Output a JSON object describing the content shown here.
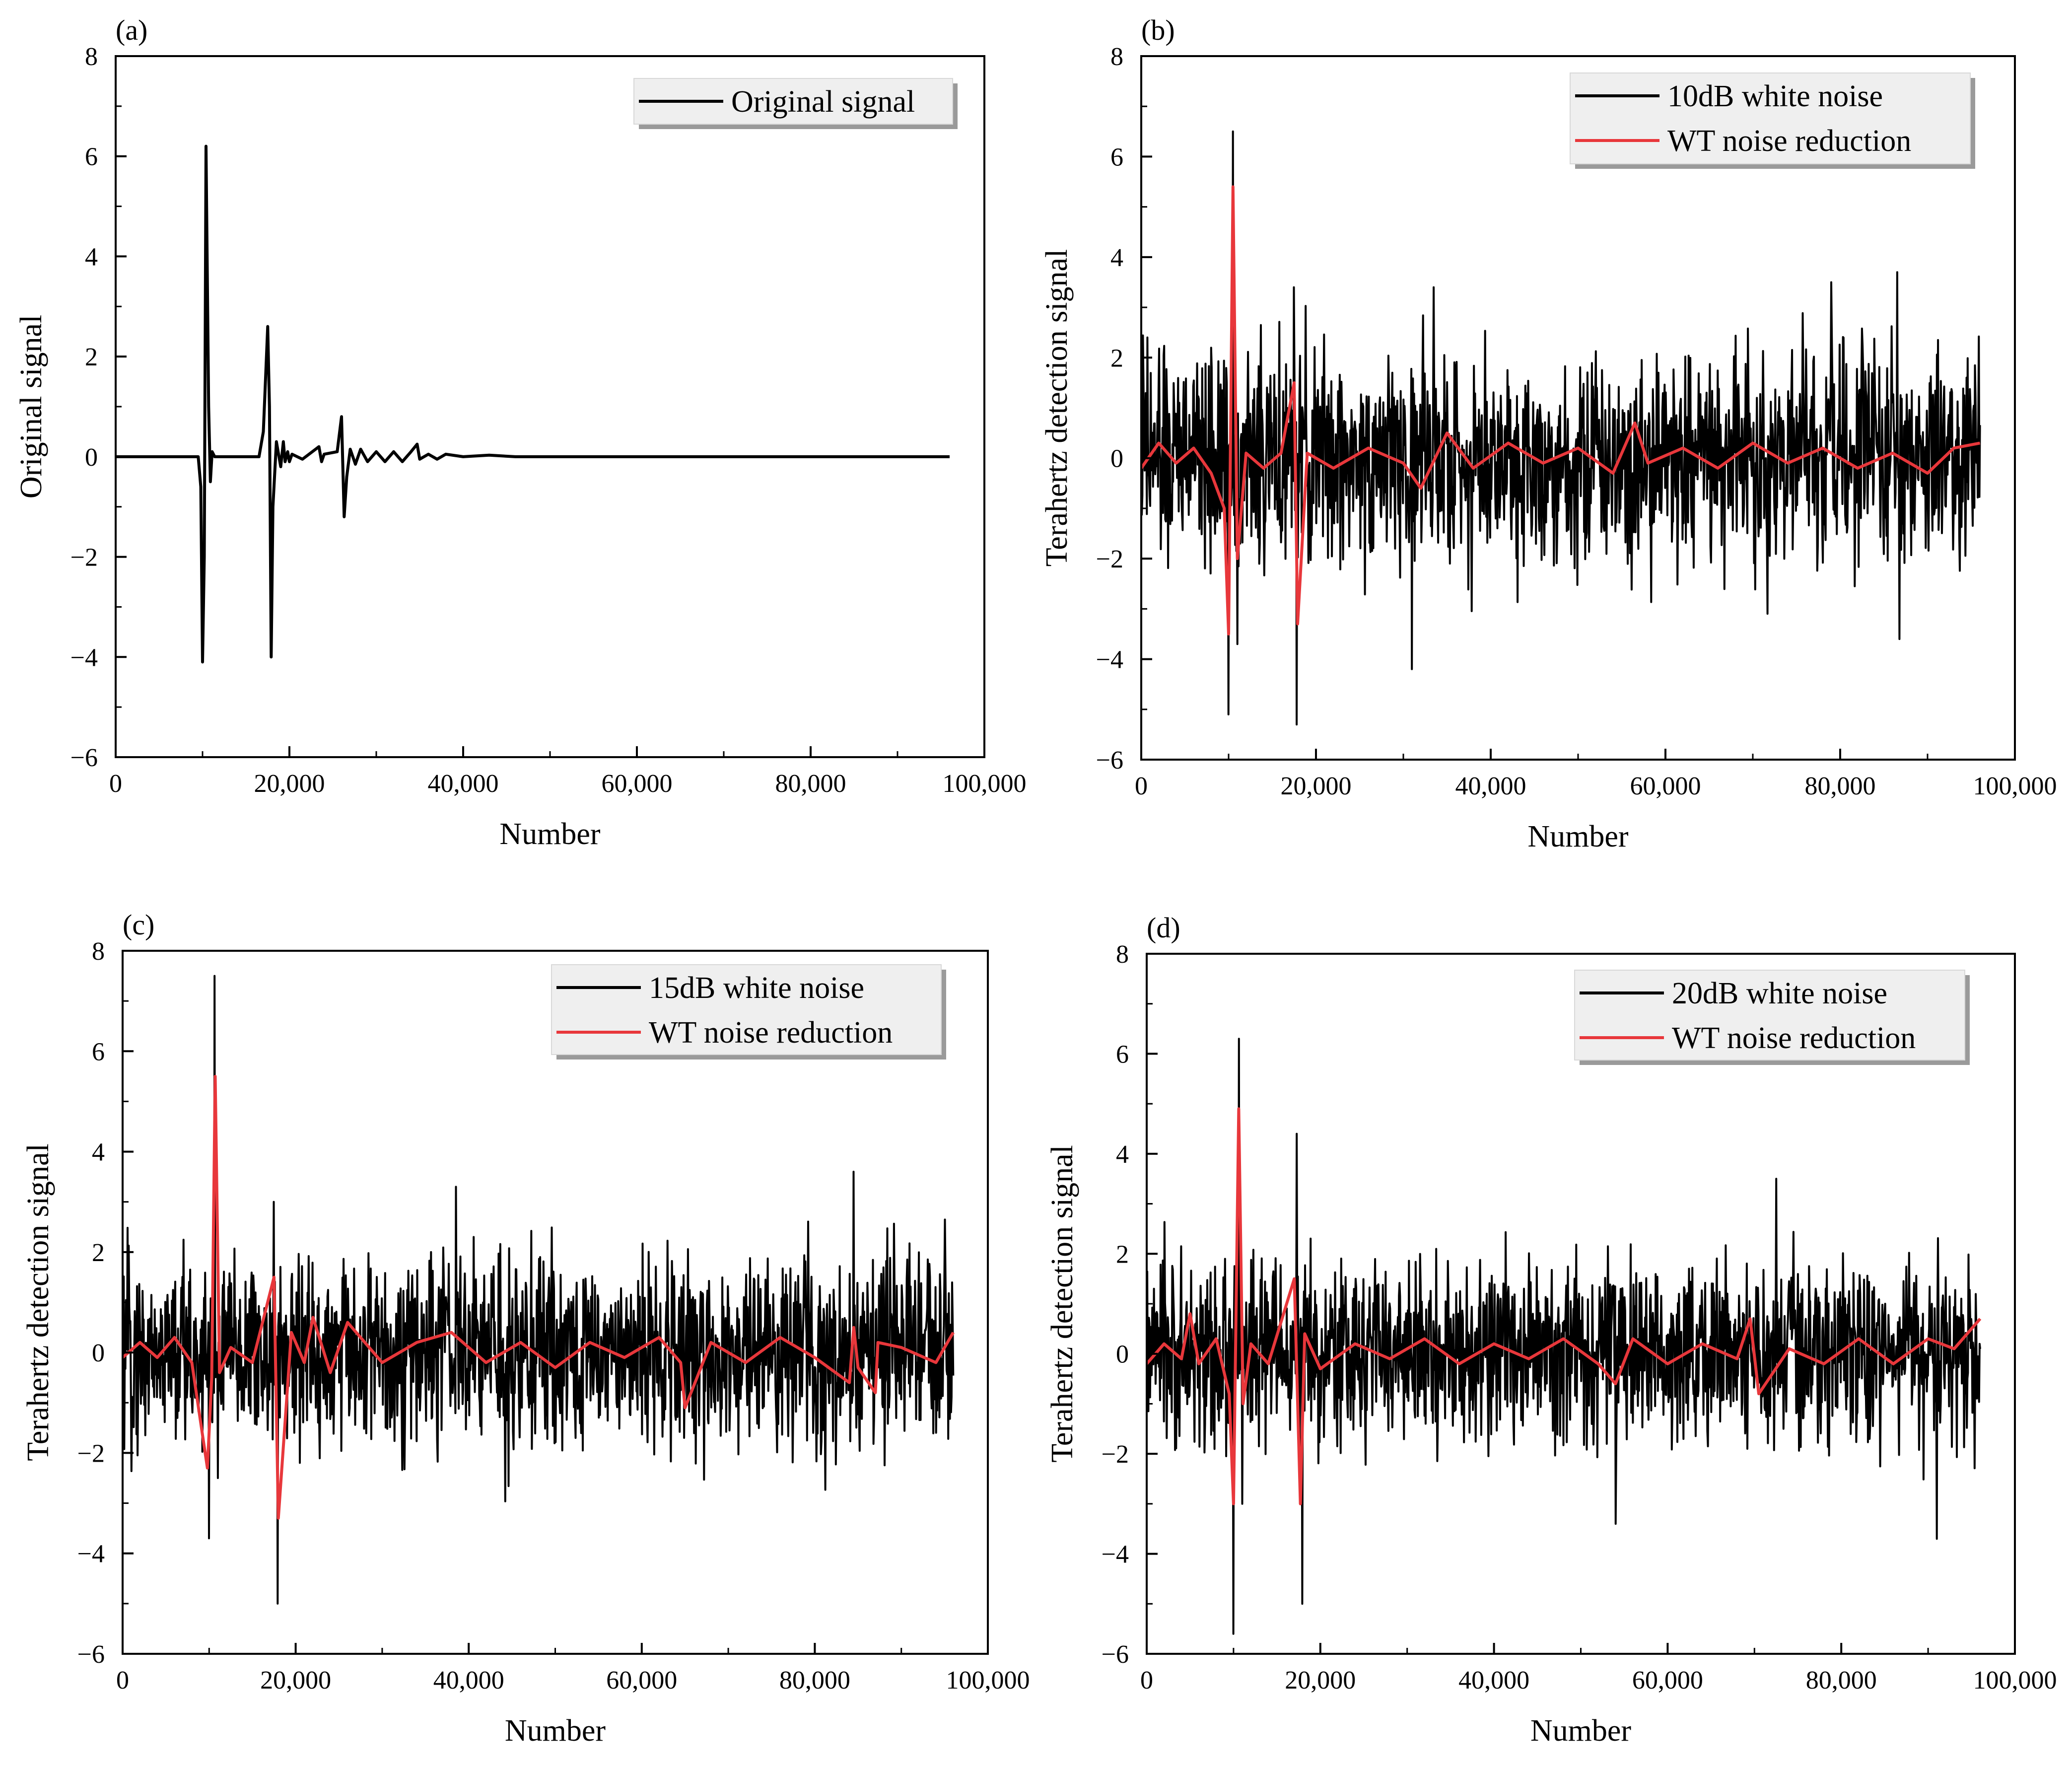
{
  "colors": {
    "noisy": "#000000",
    "denoised": "#e8373b",
    "legend_fill": "#efefef",
    "legend_shadow": "#9a9a9a"
  },
  "chart_data": [
    {
      "type": "line",
      "panel": "(a)",
      "xlabel": "Number",
      "ylabel": "Original signal",
      "xlim": [
        0,
        100000
      ],
      "ylim": [
        -6,
        8
      ],
      "xticks": [
        0,
        20000,
        40000,
        60000,
        80000,
        100000
      ],
      "xtick_labels": [
        "0",
        "20,000",
        "40,000",
        "60,000",
        "80,000",
        "100,000"
      ],
      "yticks": [
        -6,
        -4,
        -2,
        0,
        2,
        4,
        6,
        8
      ],
      "ytick_labels": [
        "−6",
        "−4",
        "−2",
        "0",
        "2",
        "4",
        "6",
        "8"
      ],
      "legend": [
        "Original signal"
      ],
      "legend_position": "top-right",
      "series": [
        {
          "name": "Original signal",
          "color": "#000000",
          "x": [
            0,
            9500,
            9800,
            10000,
            10200,
            10400,
            10700,
            10900,
            11100,
            11400,
            12000,
            16500,
            17000,
            17500,
            17700,
            17900,
            18100,
            18500,
            19000,
            19300,
            19500,
            19800,
            20000,
            20300,
            21500,
            23400,
            23700,
            24000,
            25500,
            26000,
            26300,
            26600,
            27000,
            27600,
            28200,
            29000,
            30000,
            31000,
            32000,
            33000,
            34000,
            34700,
            35000,
            36000,
            37000,
            38000,
            40000,
            43000,
            46000,
            50000,
            96000
          ],
          "y": [
            0,
            0,
            -0.6,
            -4.1,
            -2.0,
            6.2,
            1.0,
            -0.5,
            0.1,
            0,
            0,
            0,
            0.5,
            2.6,
            1.0,
            -4.0,
            -1.0,
            0.3,
            -0.2,
            0.3,
            -0.1,
            0.1,
            -0.1,
            0.05,
            -0.05,
            0.2,
            -0.1,
            0.05,
            0.1,
            0.8,
            -1.2,
            -0.4,
            0.15,
            -0.15,
            0.15,
            -0.1,
            0.1,
            -0.1,
            0.1,
            -0.1,
            0.1,
            0.25,
            -0.05,
            0.05,
            -0.05,
            0.05,
            0,
            0.03,
            0,
            0,
            0
          ]
        }
      ]
    },
    {
      "type": "line",
      "panel": "(b)",
      "xlabel": "Number",
      "ylabel": "Terahertz detection signal",
      "xlim": [
        0,
        100000
      ],
      "ylim": [
        -6,
        8
      ],
      "xticks": [
        0,
        20000,
        40000,
        60000,
        80000,
        100000
      ],
      "xtick_labels": [
        "0",
        "20,000",
        "40,000",
        "60,000",
        "80,000",
        "100,000"
      ],
      "yticks": [
        -6,
        -4,
        -2,
        0,
        2,
        4,
        6,
        8
      ],
      "ytick_labels": [
        "−6",
        "−4",
        "−2",
        "0",
        "2",
        "4",
        "6",
        "8"
      ],
      "legend": [
        "10dB white noise",
        "WT noise reduction"
      ],
      "legend_position": "top-right",
      "series": [
        {
          "name": "10dB white noise",
          "color": "#000000",
          "x": [
            0,
            96000
          ],
          "noise_amp": 1.05,
          "spikes": [
            [
              10000,
              -5.1
            ],
            [
              10500,
              6.5
            ],
            [
              11000,
              -3.7
            ],
            [
              17500,
              3.4
            ],
            [
              17800,
              -5.3
            ],
            [
              31000,
              -4.2
            ],
            [
              33500,
              3.4
            ],
            [
              86500,
              3.7
            ],
            [
              86800,
              -3.6
            ],
            [
              79000,
              3.5
            ]
          ]
        },
        {
          "name": "WT noise reduction",
          "color": "#e8373b",
          "x": [
            0,
            2000,
            4000,
            6000,
            8000,
            9500,
            10000,
            10500,
            11000,
            12000,
            14000,
            16000,
            17500,
            17900,
            19000,
            22000,
            26000,
            30000,
            32000,
            35000,
            38000,
            42000,
            46000,
            50000,
            54000,
            56500,
            58000,
            62000,
            66000,
            70000,
            74000,
            78000,
            82000,
            86000,
            90000,
            93000,
            96000
          ],
          "y": [
            -0.2,
            0.3,
            -0.1,
            0.2,
            -0.3,
            -1.0,
            -3.5,
            5.4,
            -2.0,
            0.1,
            -0.2,
            0.1,
            1.5,
            -3.3,
            0.1,
            -0.2,
            0.2,
            -0.1,
            -0.6,
            0.5,
            -0.2,
            0.3,
            -0.1,
            0.2,
            -0.3,
            0.7,
            -0.1,
            0.2,
            -0.2,
            0.3,
            -0.1,
            0.2,
            -0.2,
            0.1,
            -0.3,
            0.2,
            0.3
          ]
        }
      ]
    },
    {
      "type": "line",
      "panel": "(c)",
      "xlabel": "Number",
      "ylabel": "Terahertz detection signal",
      "xlim": [
        0,
        100000
      ],
      "ylim": [
        -6,
        8
      ],
      "xticks": [
        0,
        20000,
        40000,
        60000,
        80000,
        100000
      ],
      "xtick_labels": [
        "0",
        "20,000",
        "40,000",
        "60,000",
        "80,000",
        "100,000"
      ],
      "yticks": [
        -6,
        -4,
        -2,
        0,
        2,
        4,
        6,
        8
      ],
      "ytick_labels": [
        "−6",
        "−4",
        "−2",
        "0",
        "2",
        "4",
        "6",
        "8"
      ],
      "legend": [
        "15dB white noise",
        "WT noise reduction"
      ],
      "legend_position": "top-right",
      "series": [
        {
          "name": "15dB white noise",
          "color": "#000000",
          "x": [
            0,
            96000
          ],
          "noise_amp": 0.95,
          "spikes": [
            [
              10000,
              -3.7
            ],
            [
              10600,
              7.5
            ],
            [
              11000,
              -2.5
            ],
            [
              17500,
              3.0
            ],
            [
              17900,
              -5.0
            ],
            [
              38500,
              3.3
            ],
            [
              84500,
              3.6
            ],
            [
              87000,
              -0.8
            ]
          ]
        },
        {
          "name": "WT noise reduction",
          "color": "#e8373b",
          "x": [
            0,
            2000,
            4000,
            6000,
            8000,
            9800,
            10300,
            10700,
            11200,
            12500,
            15000,
            17500,
            18000,
            19500,
            21000,
            22000,
            24000,
            26000,
            30000,
            34000,
            38000,
            42000,
            46000,
            50000,
            54000,
            58000,
            62000,
            64500,
            65000,
            68000,
            72000,
            76000,
            80000,
            84000,
            84500,
            85000,
            87000,
            87300,
            90000,
            94000,
            96000
          ],
          "y": [
            -0.1,
            0.2,
            -0.1,
            0.3,
            -0.2,
            -2.3,
            -0.5,
            5.5,
            -0.4,
            0.1,
            -0.2,
            1.5,
            -3.3,
            0.4,
            -0.2,
            0.7,
            -0.4,
            0.6,
            -0.2,
            0.2,
            0.4,
            -0.2,
            0.2,
            -0.3,
            0.2,
            -0.1,
            0.3,
            -0.2,
            -1.1,
            0.2,
            -0.2,
            0.3,
            -0.1,
            -0.6,
            0.5,
            -0.3,
            -0.8,
            0.2,
            0.1,
            -0.2,
            0.4
          ]
        }
      ]
    },
    {
      "type": "line",
      "panel": "(d)",
      "xlabel": "Number",
      "ylabel": "Terahertz detection signal",
      "xlim": [
        0,
        100000
      ],
      "ylim": [
        -6,
        8
      ],
      "xticks": [
        0,
        20000,
        40000,
        60000,
        80000,
        100000
      ],
      "xtick_labels": [
        "0",
        "20,000",
        "40,000",
        "60,000",
        "80,000",
        "100,000"
      ],
      "yticks": [
        -6,
        -4,
        -2,
        0,
        2,
        4,
        6,
        8
      ],
      "ytick_labels": [
        "−6",
        "−4",
        "−2",
        "0",
        "2",
        "4",
        "6",
        "8"
      ],
      "legend": [
        "20dB white noise",
        "WT noise reduction"
      ],
      "legend_position": "top-right",
      "series": [
        {
          "name": "20dB white noise",
          "color": "#000000",
          "x": [
            0,
            96000
          ],
          "noise_amp": 0.9,
          "spikes": [
            [
              10000,
              -5.6
            ],
            [
              10600,
              6.3
            ],
            [
              11000,
              -3.0
            ],
            [
              17300,
              4.4
            ],
            [
              17900,
              -5.0
            ],
            [
              54000,
              -3.4
            ],
            [
              72500,
              3.5
            ],
            [
              91000,
              -3.7
            ]
          ]
        },
        {
          "name": "WT noise reduction",
          "color": "#e8373b",
          "x": [
            0,
            2000,
            4000,
            5000,
            6000,
            8000,
            9500,
            10000,
            10600,
            11100,
            12000,
            14000,
            17000,
            17700,
            18200,
            20000,
            24000,
            28000,
            32000,
            36000,
            40000,
            44000,
            48000,
            52000,
            54000,
            56000,
            60000,
            64000,
            68000,
            69500,
            70500,
            74000,
            78000,
            82000,
            86000,
            90000,
            93000,
            96000
          ],
          "y": [
            -0.2,
            0.2,
            -0.1,
            0.8,
            -0.2,
            0.3,
            -0.8,
            -3.0,
            4.9,
            -1.0,
            0.2,
            -0.2,
            1.5,
            -3.0,
            0.4,
            -0.3,
            0.2,
            -0.1,
            0.3,
            -0.2,
            0.2,
            -0.1,
            0.3,
            -0.2,
            -0.6,
            0.3,
            -0.2,
            0.2,
            -0.1,
            0.7,
            -0.8,
            0.1,
            -0.2,
            0.3,
            -0.2,
            0.3,
            0.1,
            0.7
          ]
        }
      ]
    }
  ]
}
